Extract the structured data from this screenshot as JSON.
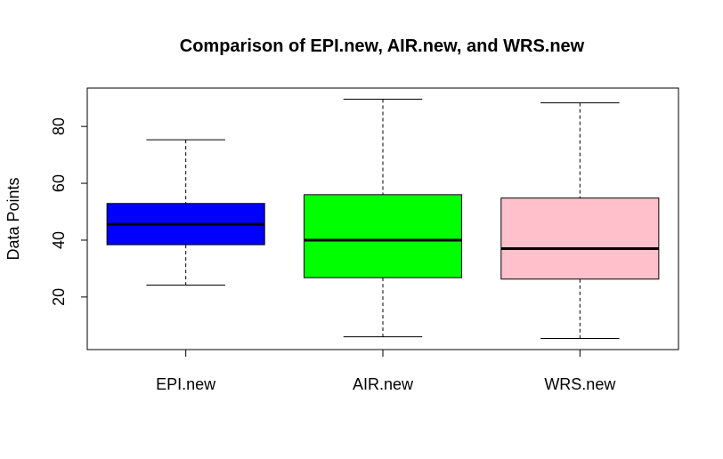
{
  "chart_data": {
    "type": "boxplot",
    "title": "Comparison of EPI.new, AIR.new, and WRS.new",
    "xlabel": "",
    "ylabel": "Data Points",
    "ylim": [
      1.5,
      93.5
    ],
    "yticks": [
      20,
      40,
      60,
      80
    ],
    "grid": false,
    "legend": "none",
    "categories": [
      "EPI.new",
      "AIR.new",
      "WRS.new"
    ],
    "boxes": [
      {
        "category": "EPI.new",
        "whisker_low": 24.2,
        "q1": 38.4,
        "median": 45.6,
        "q3": 52.9,
        "whisker_high": 75.3,
        "color": "#0000ff"
      },
      {
        "category": "AIR.new",
        "whisker_low": 6.0,
        "q1": 26.8,
        "median": 40.0,
        "q3": 56.0,
        "whisker_high": 89.6,
        "color": "#00ff00"
      },
      {
        "category": "WRS.new",
        "whisker_low": 5.4,
        "q1": 26.3,
        "median": 37.0,
        "q3": 54.8,
        "whisker_high": 88.3,
        "color": "#ffc0cb"
      }
    ]
  }
}
